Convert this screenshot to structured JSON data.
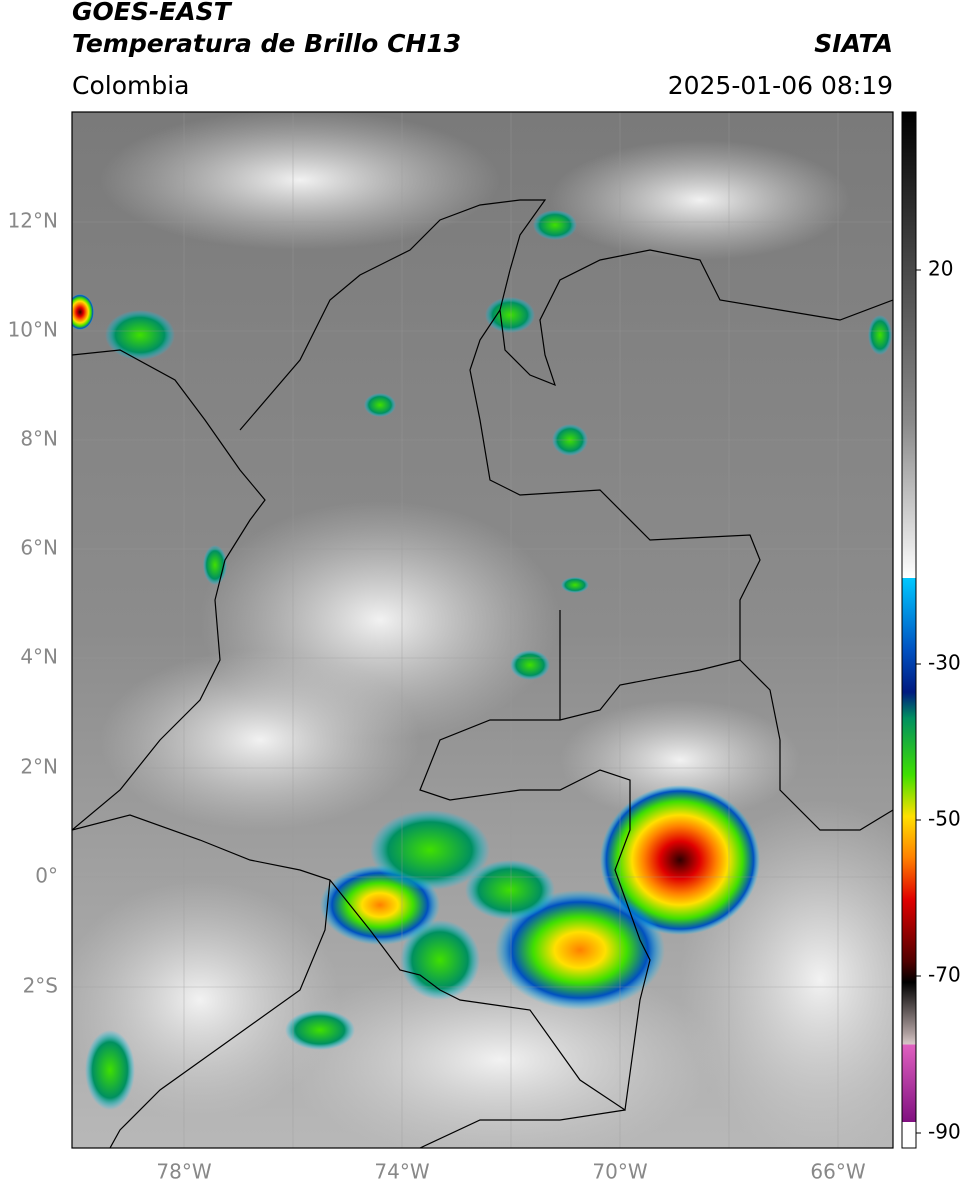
{
  "header": {
    "title": "GOES-EAST",
    "subtitle": "Temperatura de Brillo CH13",
    "source": "SIATA",
    "region": "Colombia",
    "datetime": "2025-01-06 08:19"
  },
  "map": {
    "lat_labels": [
      "12°N",
      "10°N",
      "8°N",
      "6°N",
      "4°N",
      "2°N",
      "0°",
      "2°S"
    ],
    "lon_labels": [
      "78°W",
      "74°W",
      "70°W",
      "66°W"
    ]
  },
  "colorbar": {
    "tick_labels": [
      "20",
      "-30",
      "-50",
      "-70",
      "-90"
    ]
  }
}
